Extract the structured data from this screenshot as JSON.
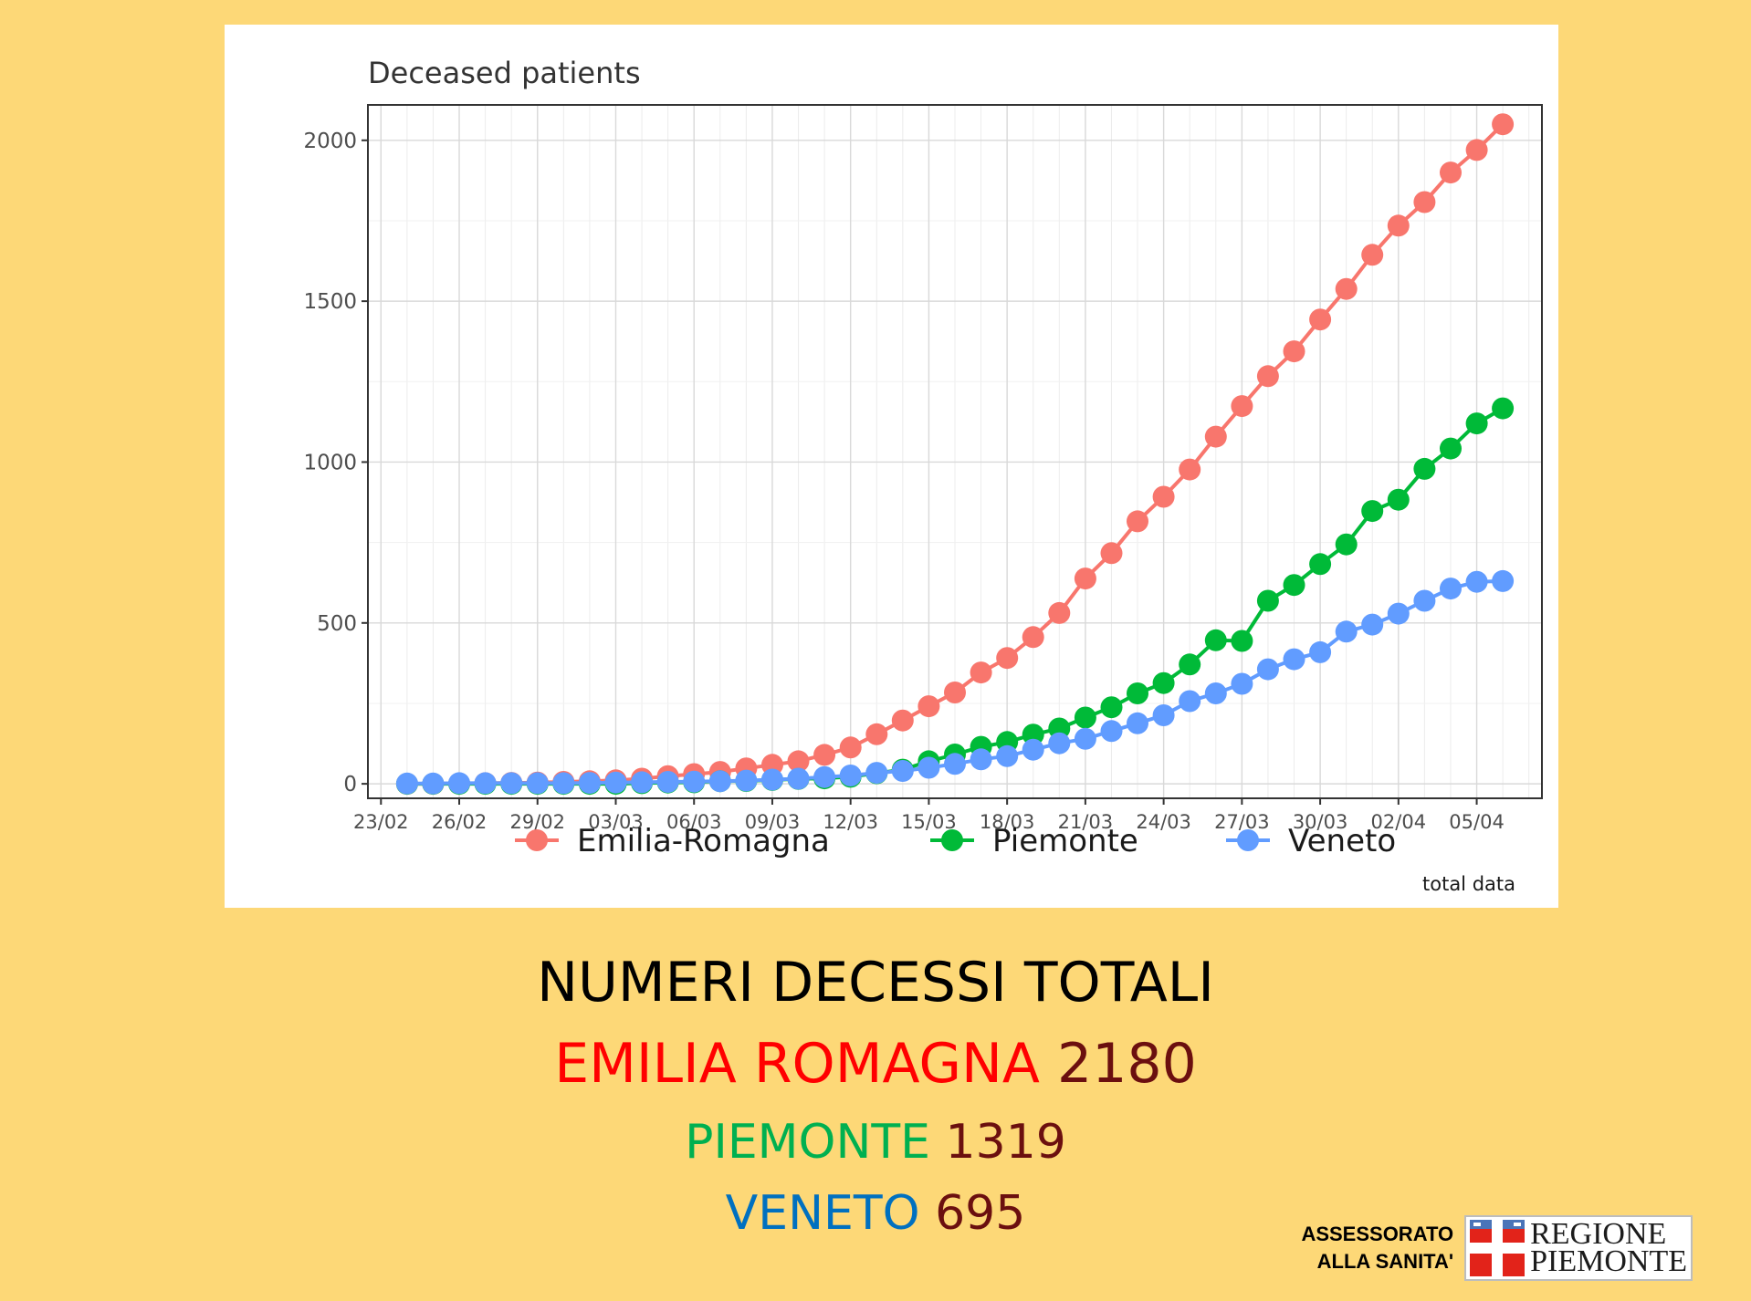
{
  "chart_data": {
    "type": "line",
    "title": "Deceased patients",
    "caption": "total data",
    "xlabel": "",
    "ylabel": "",
    "ylim": [
      -45,
      2110
    ],
    "yticks": [
      0,
      500,
      1000,
      1500,
      2000
    ],
    "grid": true,
    "legend_position": "bottom",
    "x_tick_labels": [
      "23/02",
      "26/02",
      "29/02",
      "03/03",
      "06/03",
      "09/03",
      "12/03",
      "15/03",
      "18/03",
      "21/03",
      "24/03",
      "27/03",
      "30/03",
      "02/04",
      "05/04"
    ],
    "x_tick_day_index": [
      0,
      3,
      6,
      9,
      12,
      15,
      18,
      21,
      24,
      27,
      30,
      33,
      36,
      39,
      42
    ],
    "x_day_range": [
      -0.5,
      44.5
    ],
    "x_start_day_index": 1,
    "series": [
      {
        "name": "Emilia-Romagna",
        "color": "#F8766D",
        "values": [
          0,
          0,
          1,
          2,
          3,
          4,
          6,
          8,
          11,
          16,
          24,
          30,
          37,
          48,
          59,
          70,
          90,
          113,
          154,
          197,
          241,
          284,
          346,
          391,
          456,
          531,
          638,
          717,
          816,
          892,
          977,
          1079,
          1174,
          1267,
          1344,
          1443,
          1538,
          1644,
          1735,
          1808,
          1900,
          1970,
          2050
        ]
      },
      {
        "name": "Piemonte",
        "color": "#00BA38",
        "values": [
          0,
          0,
          0,
          0,
          0,
          0,
          0,
          0,
          0,
          2,
          4,
          5,
          8,
          9,
          12,
          15,
          17,
          22,
          33,
          44,
          70,
          91,
          115,
          130,
          153,
          172,
          206,
          238,
          281,
          313,
          371,
          446,
          444,
          569,
          618,
          683,
          744,
          848,
          883,
          979,
          1042,
          1120,
          1167
        ]
      },
      {
        "name": "Veneto",
        "color": "#619CFF",
        "values": [
          1,
          1,
          2,
          2,
          2,
          2,
          2,
          3,
          4,
          5,
          6,
          7,
          8,
          10,
          13,
          16,
          21,
          26,
          34,
          40,
          50,
          62,
          76,
          86,
          106,
          126,
          140,
          164,
          188,
          213,
          257,
          281,
          311,
          356,
          387,
          409,
          473,
          495,
          529,
          569,
          607,
          628,
          630
        ]
      }
    ]
  },
  "summary": {
    "title": "NUMERI DECESSI TOTALI",
    "emilia_label": "EMILIA ROMAGNA",
    "emilia_value": "2180",
    "piemonte_label": "PIEMONTE",
    "piemonte_value": "1319",
    "veneto_label": "VENETO",
    "veneto_value": "695"
  },
  "colors": {
    "background": "#FDD877",
    "emilia_text": "#FF0000",
    "piemonte_text": "#00B050",
    "veneto_text": "#0070C0",
    "value_text": "#6B0F0F"
  },
  "footer": {
    "department_line1": "ASSESSORATO",
    "department_line2": "ALLA SANITA'",
    "logo_line1": "REGIONE",
    "logo_line2": "PIEMONTE"
  }
}
